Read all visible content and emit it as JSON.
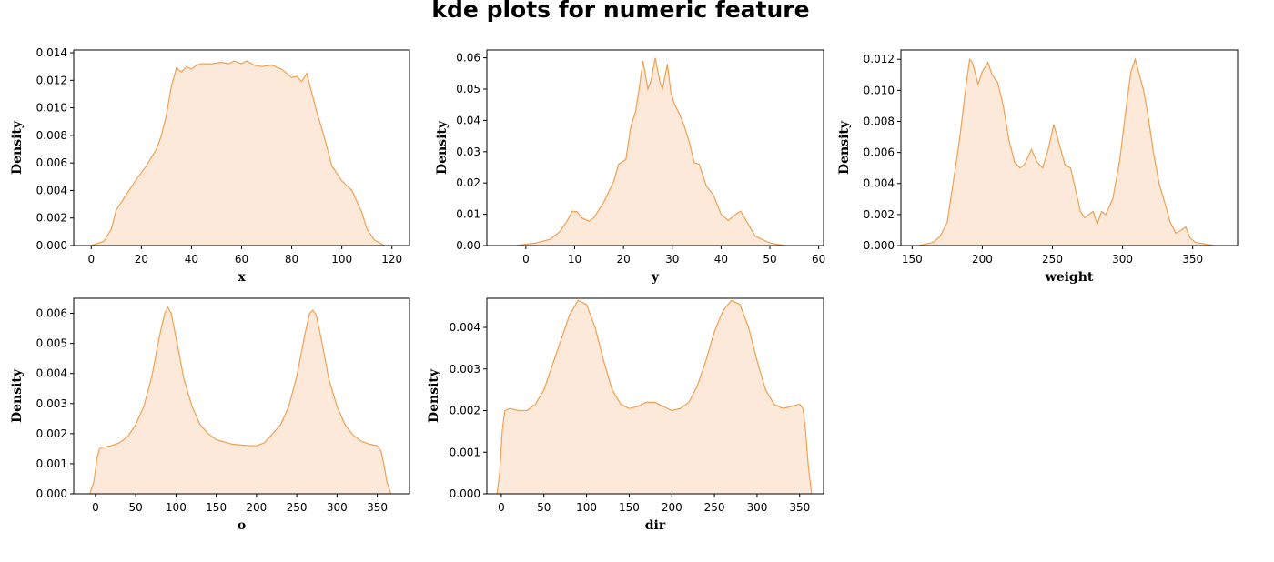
{
  "figure": {
    "title": "kde plots for numeric feature"
  },
  "style": {
    "line_color": "#f0a050",
    "fill_color": "#fde9d9"
  },
  "chart_data": [
    {
      "type": "area",
      "xlabel": "x",
      "ylabel": "Density",
      "xlim": [
        -7,
        127
      ],
      "ylim": [
        0,
        0.0142
      ],
      "xticks": [
        0,
        20,
        40,
        60,
        80,
        100,
        120
      ],
      "yticks": [
        0,
        0.002,
        0.004,
        0.006,
        0.008,
        0.01,
        0.012,
        0.014
      ],
      "ytick_decimals": 3,
      "points": [
        [
          0,
          0
        ],
        [
          5,
          0.0003
        ],
        [
          8,
          0.0012
        ],
        [
          10,
          0.0026
        ],
        [
          14,
          0.0037
        ],
        [
          18,
          0.0048
        ],
        [
          22,
          0.0058
        ],
        [
          26,
          0.007
        ],
        [
          28,
          0.008
        ],
        [
          30,
          0.0095
        ],
        [
          32,
          0.0116
        ],
        [
          34,
          0.0129
        ],
        [
          36,
          0.0126
        ],
        [
          38,
          0.013
        ],
        [
          40,
          0.0128
        ],
        [
          42,
          0.0131
        ],
        [
          44,
          0.0132
        ],
        [
          48,
          0.0132
        ],
        [
          52,
          0.0133
        ],
        [
          55,
          0.0132
        ],
        [
          57,
          0.0134
        ],
        [
          60,
          0.0132
        ],
        [
          62,
          0.0134
        ],
        [
          65,
          0.0131
        ],
        [
          68,
          0.013
        ],
        [
          72,
          0.0131
        ],
        [
          76,
          0.0128
        ],
        [
          78,
          0.0125
        ],
        [
          80,
          0.0122
        ],
        [
          82,
          0.0123
        ],
        [
          84,
          0.0119
        ],
        [
          86,
          0.0125
        ],
        [
          88,
          0.0111
        ],
        [
          90,
          0.0097
        ],
        [
          92,
          0.0085
        ],
        [
          94,
          0.0072
        ],
        [
          96,
          0.0058
        ],
        [
          100,
          0.0047
        ],
        [
          104,
          0.004
        ],
        [
          106,
          0.0032
        ],
        [
          108,
          0.0024
        ],
        [
          110,
          0.0012
        ],
        [
          113,
          0.0004
        ],
        [
          117,
          0
        ]
      ]
    },
    {
      "type": "area",
      "xlabel": "y",
      "ylabel": "Density",
      "xlim": [
        -8,
        61
      ],
      "ylim": [
        0,
        0.0625
      ],
      "xticks": [
        0,
        10,
        20,
        30,
        40,
        50,
        60
      ],
      "yticks": [
        0,
        0.01,
        0.02,
        0.03,
        0.04,
        0.05,
        0.06
      ],
      "ytick_decimals": 2,
      "points": [
        [
          -2,
          0
        ],
        [
          2,
          0.0008
        ],
        [
          5,
          0.002
        ],
        [
          7,
          0.0045
        ],
        [
          8.5,
          0.008
        ],
        [
          9.5,
          0.011
        ],
        [
          10.5,
          0.0108
        ],
        [
          11.5,
          0.0088
        ],
        [
          13,
          0.0078
        ],
        [
          14,
          0.009
        ],
        [
          16,
          0.014
        ],
        [
          18,
          0.0205
        ],
        [
          19,
          0.026
        ],
        [
          20.5,
          0.0275
        ],
        [
          21.5,
          0.038
        ],
        [
          22.5,
          0.043
        ],
        [
          23.2,
          0.05
        ],
        [
          24,
          0.059
        ],
        [
          25,
          0.05
        ],
        [
          25.7,
          0.053
        ],
        [
          26.5,
          0.06
        ],
        [
          27.5,
          0.052
        ],
        [
          28,
          0.05
        ],
        [
          29,
          0.058
        ],
        [
          29.7,
          0.049
        ],
        [
          30.5,
          0.045
        ],
        [
          31.5,
          0.042
        ],
        [
          32.5,
          0.038
        ],
        [
          33.5,
          0.033
        ],
        [
          34.5,
          0.0265
        ],
        [
          35.5,
          0.026
        ],
        [
          37,
          0.019
        ],
        [
          38.5,
          0.016
        ],
        [
          40,
          0.01
        ],
        [
          41.5,
          0.008
        ],
        [
          43,
          0.01
        ],
        [
          44,
          0.011
        ],
        [
          45.5,
          0.007
        ],
        [
          47,
          0.003
        ],
        [
          50,
          0.0008
        ],
        [
          53,
          0
        ]
      ]
    },
    {
      "type": "area",
      "xlabel": "weight",
      "ylabel": "Density",
      "xlim": [
        142,
        382
      ],
      "ylim": [
        0,
        0.0126
      ],
      "xticks": [
        150,
        200,
        250,
        300,
        350
      ],
      "yticks": [
        0,
        0.002,
        0.004,
        0.006,
        0.008,
        0.01,
        0.012
      ],
      "ytick_decimals": 3,
      "points": [
        [
          155,
          0
        ],
        [
          165,
          0.0002
        ],
        [
          170,
          0.0006
        ],
        [
          175,
          0.0015
        ],
        [
          180,
          0.0045
        ],
        [
          184,
          0.007
        ],
        [
          188,
          0.01
        ],
        [
          191,
          0.012
        ],
        [
          193,
          0.0118
        ],
        [
          197,
          0.0104
        ],
        [
          200,
          0.0112
        ],
        [
          204,
          0.0118
        ],
        [
          207,
          0.011
        ],
        [
          211,
          0.0105
        ],
        [
          215,
          0.009
        ],
        [
          219,
          0.0068
        ],
        [
          223,
          0.0054
        ],
        [
          227,
          0.005
        ],
        [
          230,
          0.0052
        ],
        [
          235,
          0.0062
        ],
        [
          239,
          0.0054
        ],
        [
          243,
          0.005
        ],
        [
          247,
          0.0062
        ],
        [
          251,
          0.0078
        ],
        [
          255,
          0.0065
        ],
        [
          259,
          0.0052
        ],
        [
          263,
          0.005
        ],
        [
          266,
          0.0038
        ],
        [
          270,
          0.0022
        ],
        [
          273,
          0.0018
        ],
        [
          276,
          0.002
        ],
        [
          279,
          0.0022
        ],
        [
          282,
          0.0014
        ],
        [
          285,
          0.0022
        ],
        [
          288,
          0.002
        ],
        [
          293,
          0.003
        ],
        [
          298,
          0.0055
        ],
        [
          302,
          0.0085
        ],
        [
          306,
          0.0112
        ],
        [
          309,
          0.012
        ],
        [
          312,
          0.011
        ],
        [
          315,
          0.01
        ],
        [
          318,
          0.0085
        ],
        [
          322,
          0.006
        ],
        [
          326,
          0.004
        ],
        [
          330,
          0.0028
        ],
        [
          334,
          0.0015
        ],
        [
          338,
          0.0008
        ],
        [
          342,
          0.001
        ],
        [
          345,
          0.0012
        ],
        [
          348,
          0.0005
        ],
        [
          352,
          0.0002
        ],
        [
          365,
          0
        ]
      ]
    },
    {
      "type": "area",
      "xlabel": "o",
      "ylabel": "Density",
      "xlim": [
        -27,
        390
      ],
      "ylim": [
        0,
        0.0065
      ],
      "xticks": [
        0,
        50,
        100,
        150,
        200,
        250,
        300,
        350
      ],
      "yticks": [
        0,
        0.001,
        0.002,
        0.003,
        0.004,
        0.005,
        0.006
      ],
      "ytick_decimals": 3,
      "points": [
        [
          -7,
          0
        ],
        [
          -2,
          0.0004
        ],
        [
          2,
          0.0012
        ],
        [
          5,
          0.0015
        ],
        [
          10,
          0.00155
        ],
        [
          20,
          0.0016
        ],
        [
          30,
          0.0017
        ],
        [
          40,
          0.0019
        ],
        [
          50,
          0.0023
        ],
        [
          60,
          0.0029
        ],
        [
          70,
          0.0039
        ],
        [
          80,
          0.0053
        ],
        [
          86,
          0.006
        ],
        [
          90,
          0.0062
        ],
        [
          94,
          0.006
        ],
        [
          100,
          0.0052
        ],
        [
          110,
          0.0038
        ],
        [
          120,
          0.0029
        ],
        [
          130,
          0.0023
        ],
        [
          140,
          0.002
        ],
        [
          150,
          0.0018
        ],
        [
          170,
          0.00165
        ],
        [
          190,
          0.0016
        ],
        [
          200,
          0.0016
        ],
        [
          210,
          0.0017
        ],
        [
          220,
          0.002
        ],
        [
          230,
          0.0023
        ],
        [
          240,
          0.0029
        ],
        [
          250,
          0.0039
        ],
        [
          260,
          0.0053
        ],
        [
          266,
          0.006
        ],
        [
          270,
          0.0061
        ],
        [
          274,
          0.00595
        ],
        [
          280,
          0.0052
        ],
        [
          290,
          0.0038
        ],
        [
          300,
          0.0029
        ],
        [
          310,
          0.0023
        ],
        [
          320,
          0.00195
        ],
        [
          330,
          0.00175
        ],
        [
          340,
          0.00165
        ],
        [
          350,
          0.0016
        ],
        [
          355,
          0.0014
        ],
        [
          358,
          0.001
        ],
        [
          362,
          0.0004
        ],
        [
          367,
          0
        ]
      ]
    },
    {
      "type": "area",
      "xlabel": "dir",
      "ylabel": "Density",
      "xlim": [
        -17,
        378
      ],
      "ylim": [
        0,
        0.0047
      ],
      "xticks": [
        0,
        50,
        100,
        150,
        200,
        250,
        300,
        350
      ],
      "yticks": [
        0,
        0.001,
        0.002,
        0.003,
        0.004
      ],
      "ytick_decimals": 3,
      "points": [
        [
          -5,
          0
        ],
        [
          -2,
          0.0005
        ],
        [
          1,
          0.0015
        ],
        [
          4,
          0.002
        ],
        [
          10,
          0.00205
        ],
        [
          20,
          0.002
        ],
        [
          30,
          0.002
        ],
        [
          40,
          0.00215
        ],
        [
          50,
          0.0025
        ],
        [
          60,
          0.0031
        ],
        [
          70,
          0.0037
        ],
        [
          80,
          0.0043
        ],
        [
          90,
          0.00465
        ],
        [
          100,
          0.00455
        ],
        [
          110,
          0.004
        ],
        [
          120,
          0.0032
        ],
        [
          130,
          0.0025
        ],
        [
          140,
          0.00215
        ],
        [
          150,
          0.00205
        ],
        [
          160,
          0.0021
        ],
        [
          170,
          0.0022
        ],
        [
          180,
          0.0022
        ],
        [
          190,
          0.0021
        ],
        [
          200,
          0.002
        ],
        [
          210,
          0.00205
        ],
        [
          220,
          0.0022
        ],
        [
          230,
          0.0026
        ],
        [
          240,
          0.0032
        ],
        [
          250,
          0.0039
        ],
        [
          260,
          0.0044
        ],
        [
          270,
          0.00465
        ],
        [
          280,
          0.00455
        ],
        [
          290,
          0.004
        ],
        [
          300,
          0.0032
        ],
        [
          310,
          0.0025
        ],
        [
          320,
          0.00215
        ],
        [
          330,
          0.00205
        ],
        [
          340,
          0.0021
        ],
        [
          350,
          0.00215
        ],
        [
          354,
          0.00205
        ],
        [
          357,
          0.0015
        ],
        [
          360,
          0.0007
        ],
        [
          364,
          0
        ]
      ]
    }
  ]
}
